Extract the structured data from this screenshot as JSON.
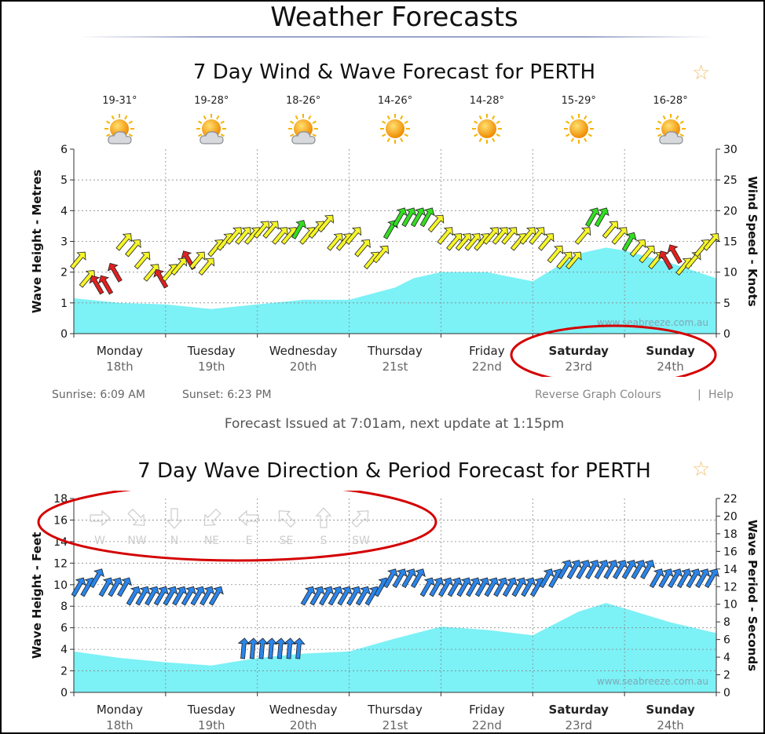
{
  "page": {
    "title": "Weather Forecasts",
    "issued": "Forecast Issued at 7:01am, next update at 1:15pm",
    "sunrise": "Sunrise: 6:09 AM",
    "sunset": "Sunset: 6:23 PM",
    "reverse_link": "Reverse Graph Colours",
    "separator": "|",
    "help_link": "Help",
    "star_glyph": "☆",
    "watermark": "www.seabreeze.com.au",
    "highlight_color": "#d40000"
  },
  "days": [
    {
      "name": "Monday",
      "date": "18th",
      "temp": "19-31°",
      "icon": "partly-cloudy-icon",
      "bold": false
    },
    {
      "name": "Tuesday",
      "date": "19th",
      "temp": "19-28°",
      "icon": "partly-cloudy-icon",
      "bold": false
    },
    {
      "name": "Wednesday",
      "date": "20th",
      "temp": "18-26°",
      "icon": "partly-cloudy-icon",
      "bold": false
    },
    {
      "name": "Thursday",
      "date": "21st",
      "temp": "14-26°",
      "icon": "sunny-icon",
      "bold": false
    },
    {
      "name": "Friday",
      "date": "22nd",
      "temp": "14-28°",
      "icon": "sunny-icon",
      "bold": false
    },
    {
      "name": "Saturday",
      "date": "23rd",
      "temp": "15-29°",
      "icon": "sunny-icon",
      "bold": true
    },
    {
      "name": "Sunday",
      "date": "24th",
      "temp": "16-28°",
      "icon": "partly-cloudy-icon",
      "bold": true
    }
  ],
  "chart_data": [
    {
      "type": "area",
      "title": "7 Day Wind & Wave Forecast for PERTH",
      "ylabel": "Wave Height - Metres",
      "y2label": "Wind Speed - Knots",
      "ylim": [
        0,
        6
      ],
      "yticks": [
        "0",
        "1",
        "2",
        "3",
        "4",
        "5",
        "6"
      ],
      "y2lim": [
        0,
        30
      ],
      "y2ticks": [
        "0",
        "5",
        "10",
        "15",
        "20",
        "25",
        "30"
      ],
      "xlim": [
        0,
        7
      ],
      "series": [
        {
          "name": "Wave Height (m)",
          "color": "#6ef0f5",
          "x": [
            0,
            0.5,
            1,
            1.5,
            2,
            2.5,
            3,
            3.5,
            3.7,
            4,
            4.5,
            5,
            5.5,
            5.8,
            6,
            6.5,
            7
          ],
          "values": [
            1.15,
            1.0,
            0.95,
            0.8,
            0.95,
            1.1,
            1.1,
            1.5,
            1.8,
            2.0,
            2.0,
            1.7,
            2.6,
            2.8,
            2.7,
            2.3,
            1.8
          ]
        },
        {
          "name": "Wind Speed (knots) - arrows",
          "type": "wind-arrows",
          "colors": {
            "light": "#f5f52a",
            "medium": "#33dd22",
            "strong": "#e02020"
          },
          "x": [
            0,
            0.1,
            0.2,
            0.3,
            0.4,
            0.5,
            0.6,
            0.7,
            0.8,
            0.9,
            1.0,
            1.1,
            1.2,
            1.3,
            1.4,
            1.5,
            1.6,
            1.7,
            1.8,
            1.9,
            2.0,
            2.1,
            2.2,
            2.3,
            2.4,
            2.5,
            2.6,
            2.7,
            2.8,
            2.9,
            3.0,
            3.1,
            3.2,
            3.3,
            3.4,
            3.5,
            3.6,
            3.7,
            3.8,
            3.9,
            4.0,
            4.1,
            4.2,
            4.3,
            4.4,
            4.5,
            4.6,
            4.7,
            4.8,
            4.9,
            5.0,
            5.1,
            5.2,
            5.3,
            5.4,
            5.5,
            5.6,
            5.7,
            5.8,
            5.9,
            6.0,
            6.1,
            6.2,
            6.3,
            6.4,
            6.5,
            6.6,
            6.7,
            6.8,
            6.9
          ],
          "values": [
            12,
            9,
            8,
            8,
            10,
            15,
            14,
            12,
            10,
            9,
            10,
            11,
            12,
            12,
            11,
            14,
            15,
            16,
            16,
            16,
            17,
            17,
            16,
            16,
            17,
            16,
            17,
            18,
            15,
            15,
            16,
            14,
            12,
            13,
            17,
            19,
            19,
            19,
            19,
            18,
            16,
            15,
            15,
            15,
            15,
            16,
            16,
            16,
            15,
            16,
            16,
            15,
            13,
            12,
            12,
            16,
            19,
            19,
            17,
            16,
            15,
            14,
            13,
            12,
            12,
            13,
            11,
            12,
            14,
            15
          ],
          "levels": [
            "light",
            "light",
            "strong",
            "strong",
            "strong",
            "light",
            "light",
            "light",
            "light",
            "strong",
            "light",
            "light",
            "strong",
            "light",
            "light",
            "light",
            "light",
            "light",
            "light",
            "light",
            "light",
            "light",
            "light",
            "light",
            "medium",
            "light",
            "light",
            "light",
            "light",
            "light",
            "light",
            "light",
            "light",
            "light",
            "medium",
            "medium",
            "medium",
            "medium",
            "medium",
            "light",
            "light",
            "light",
            "light",
            "light",
            "light",
            "light",
            "light",
            "light",
            "light",
            "light",
            "light",
            "light",
            "light",
            "light",
            "light",
            "light",
            "medium",
            "medium",
            "light",
            "light",
            "medium",
            "light",
            "light",
            "light",
            "strong",
            "strong",
            "light",
            "light",
            "light",
            "light"
          ]
        }
      ]
    },
    {
      "type": "area",
      "title": "7 Day Wave Direction & Period Forecast for PERTH",
      "ylabel": "Wave Height - Feet",
      "y2label": "Wave Period - Seconds",
      "ylim": [
        0,
        18
      ],
      "yticks": [
        "0",
        "2",
        "4",
        "6",
        "8",
        "10",
        "12",
        "14",
        "16",
        "18"
      ],
      "y2lim": [
        0,
        22
      ],
      "y2ticks": [
        "0",
        "2",
        "4",
        "6",
        "8",
        "10",
        "12",
        "14",
        "16",
        "18",
        "20",
        "22"
      ],
      "xlim": [
        0,
        7
      ],
      "direction_legend": [
        "W",
        "NW",
        "N",
        "NE",
        "E",
        "SE",
        "S",
        "SW"
      ],
      "series": [
        {
          "name": "Wave Height (ft)",
          "color": "#6ef0f5",
          "x": [
            0,
            0.5,
            1,
            1.5,
            2,
            2.5,
            3,
            3.5,
            4,
            4.5,
            5,
            5.5,
            5.8,
            6,
            6.5,
            7
          ],
          "values": [
            3.8,
            3.2,
            2.8,
            2.5,
            3.2,
            3.6,
            3.8,
            5.0,
            6.1,
            5.8,
            5.3,
            7.5,
            8.3,
            7.8,
            6.5,
            5.5
          ]
        },
        {
          "name": "Wave Period (s) - arrows",
          "type": "direction-arrows",
          "color": "#2a85ea",
          "x": [
            0,
            0.1,
            0.2,
            0.3,
            0.4,
            0.5,
            0.6,
            0.7,
            0.8,
            0.9,
            1.0,
            1.1,
            1.2,
            1.3,
            1.4,
            1.5,
            1.8,
            1.9,
            2.0,
            2.1,
            2.2,
            2.3,
            2.4,
            2.5,
            2.6,
            2.7,
            2.8,
            2.9,
            3.0,
            3.1,
            3.2,
            3.3,
            3.4,
            3.5,
            3.6,
            3.7,
            3.8,
            3.9,
            4.0,
            4.1,
            4.2,
            4.3,
            4.4,
            4.5,
            4.6,
            4.7,
            4.8,
            4.9,
            5.0,
            5.1,
            5.2,
            5.3,
            5.4,
            5.5,
            5.6,
            5.7,
            5.8,
            5.9,
            6.0,
            6.1,
            6.2,
            6.3,
            6.4,
            6.5,
            6.6,
            6.7,
            6.8,
            6.9
          ],
          "values": [
            12,
            12,
            13,
            12,
            12,
            12,
            11,
            11,
            11,
            11,
            11,
            11,
            11,
            11,
            11,
            11,
            5,
            5,
            5,
            5,
            5,
            5,
            5,
            11,
            11,
            11,
            11,
            11,
            11,
            11,
            11,
            12,
            13,
            13,
            13,
            13,
            12,
            12,
            12,
            12,
            12,
            12,
            12,
            12,
            12,
            12,
            12,
            12,
            12,
            13,
            13,
            14,
            14,
            14,
            14,
            14,
            14,
            14,
            14,
            14,
            14,
            13,
            13,
            13,
            13,
            13,
            13,
            13
          ]
        }
      ]
    }
  ]
}
